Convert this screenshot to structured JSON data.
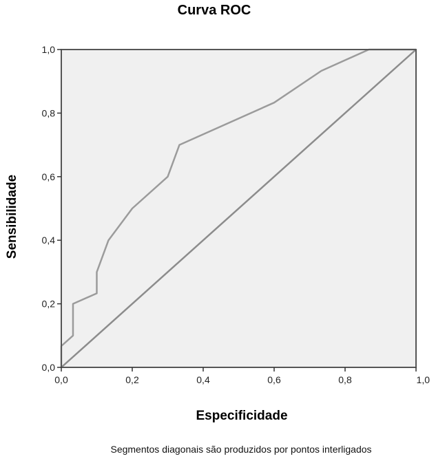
{
  "chart_data": {
    "type": "line",
    "title": "Curva ROC",
    "xlabel": "Especificidade",
    "ylabel": "Sensibilidade",
    "xlim": [
      0,
      1
    ],
    "ylim": [
      0,
      1
    ],
    "x_ticks": [
      "0,0",
      "0,2",
      "0,4",
      "0,6",
      "0,8",
      "1,0"
    ],
    "y_ticks": [
      "0,0",
      "0,2",
      "0,4",
      "0,6",
      "0,8",
      "1,0"
    ],
    "x_tick_values": [
      0,
      0.2,
      0.4,
      0.6,
      0.8,
      1.0
    ],
    "y_tick_values": [
      0,
      0.2,
      0.4,
      0.6,
      0.8,
      1.0
    ],
    "grid": false,
    "series": [
      {
        "x": [
          0,
          0,
          0.033,
          0.033,
          0.1,
          0.1,
          0.133,
          0.2,
          0.3,
          0.333,
          0.6,
          0.733,
          0.867,
          1.0
        ],
        "y": [
          0,
          0.067,
          0.1,
          0.2,
          0.233,
          0.3,
          0.4,
          0.5,
          0.6,
          0.7,
          0.833,
          0.933,
          1.0,
          1.0
        ]
      },
      {
        "x": [
          0,
          1
        ],
        "y": [
          0,
          1
        ]
      }
    ],
    "colors": {
      "plot_background": "#f0f0f0",
      "curve": "#9b9b9b",
      "reference": "#8c8c8c",
      "frame": "#555555"
    }
  },
  "footnote": "Segmentos diagonais são produzidos por pontos interligados"
}
